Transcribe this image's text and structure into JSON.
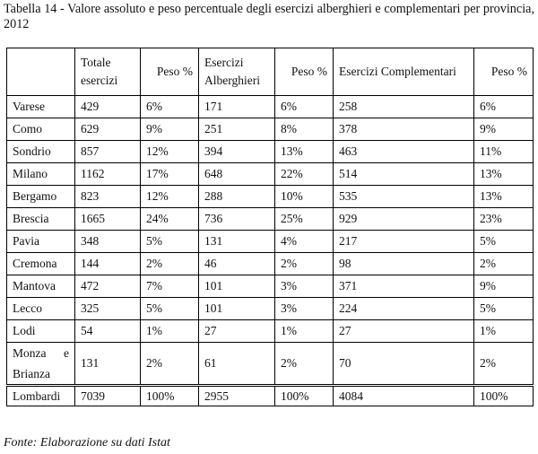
{
  "caption": "Tabella 14 - Valore assoluto e peso percentuale degli esercizi alberghieri e complementari per provincia, 2012",
  "headers": {
    "province": "",
    "totale": "Totale esercizi",
    "peso1": "Peso %",
    "alberghieri": "Esercizi Alberghieri",
    "peso2": "Peso %",
    "complementari": "Esercizi Complementari",
    "peso3": "Peso %"
  },
  "rows": [
    {
      "province": "Varese",
      "totale": "429",
      "peso1": "6%",
      "alberghieri": "171",
      "peso2": "6%",
      "complementari": "258",
      "peso3": "6%"
    },
    {
      "province": "Como",
      "totale": "629",
      "peso1": "9%",
      "alberghieri": "251",
      "peso2": "8%",
      "complementari": "378",
      "peso3": "9%"
    },
    {
      "province": "Sondrio",
      "totale": "857",
      "peso1": "12%",
      "alberghieri": "394",
      "peso2": "13%",
      "complementari": "463",
      "peso3": "11%"
    },
    {
      "province": "Milano",
      "totale": "1162",
      "peso1": "17%",
      "alberghieri": "648",
      "peso2": "22%",
      "complementari": "514",
      "peso3": "13%"
    },
    {
      "province": "Bergamo",
      "totale": "823",
      "peso1": "12%",
      "alberghieri": "288",
      "peso2": "10%",
      "complementari": "535",
      "peso3": "13%"
    },
    {
      "province": "Brescia",
      "totale": "1665",
      "peso1": "24%",
      "alberghieri": "736",
      "peso2": "25%",
      "complementari": "929",
      "peso3": "23%"
    },
    {
      "province": "Pavia",
      "totale": "348",
      "peso1": "5%",
      "alberghieri": "131",
      "peso2": "4%",
      "complementari": "217",
      "peso3": "5%"
    },
    {
      "province": "Cremona",
      "totale": "144",
      "peso1": "2%",
      "alberghieri": "46",
      "peso2": "2%",
      "complementari": "98",
      "peso3": "2%"
    },
    {
      "province": "Mantova",
      "totale": "472",
      "peso1": "7%",
      "alberghieri": "101",
      "peso2": "3%",
      "complementari": "371",
      "peso3": "9%"
    },
    {
      "province": "Lecco",
      "totale": "325",
      "peso1": "5%",
      "alberghieri": "101",
      "peso2": "3%",
      "complementari": "224",
      "peso3": "5%"
    },
    {
      "province": "Lodi",
      "totale": "54",
      "peso1": "1%",
      "alberghieri": "27",
      "peso2": "1%",
      "complementari": "27",
      "peso3": "1%"
    },
    {
      "province": "Monza e Brianza",
      "totale": "131",
      "peso1": "2%",
      "alberghieri": "61",
      "peso2": "2%",
      "complementari": "70",
      "peso3": "2%"
    }
  ],
  "total": {
    "province": "Lombardi",
    "totale": "7039",
    "peso1": "100%",
    "alberghieri": "2955",
    "peso2": "100%",
    "complementari": "4084",
    "peso3": "100%"
  },
  "source": "Fonte: Elaborazione su dati Istat"
}
